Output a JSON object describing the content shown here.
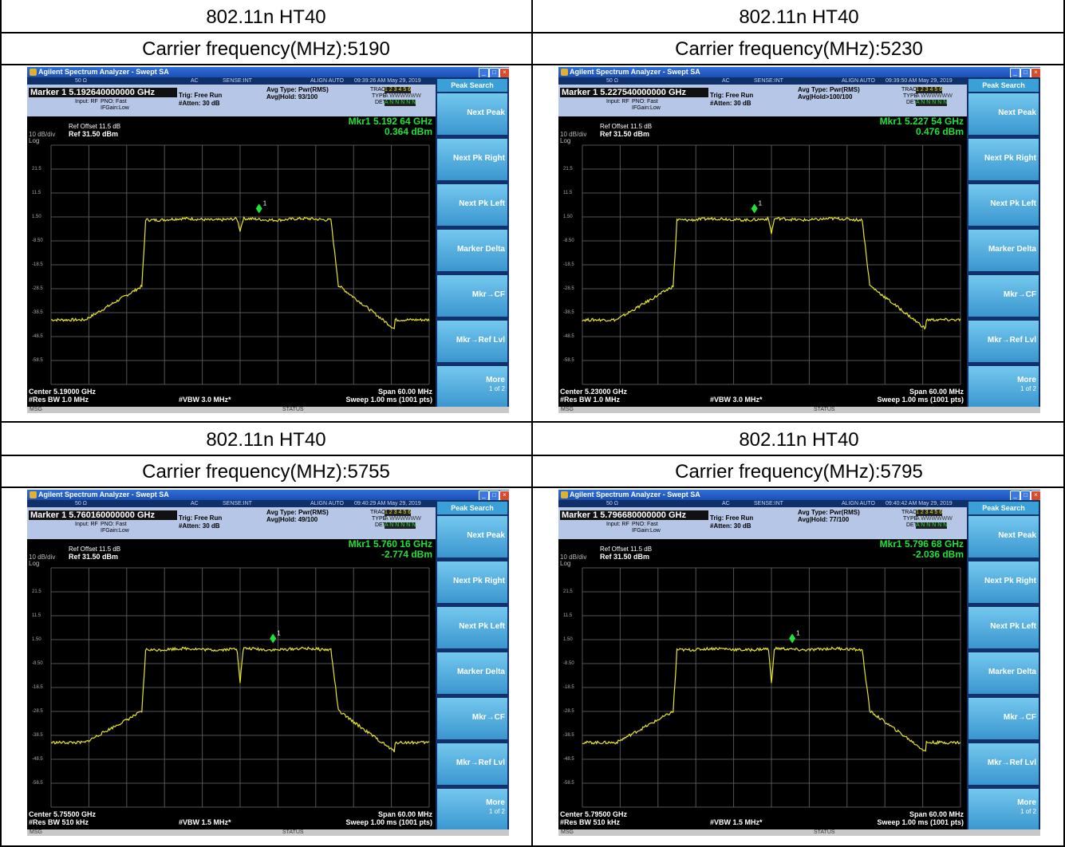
{
  "panels": [
    {
      "header_line1": "802.11n HT40",
      "header_line2": "Carrier frequency(MHz):5190",
      "window_title": "Agilent Spectrum Analyzer - Swept SA",
      "timestamp": "09:39:26 AM May 29, 2019",
      "marker_line": "Marker 1  5.192640000000 GHz",
      "input": "Input: RF",
      "pno": "PNO: Fast",
      "ifgain": "IFGain:Low",
      "trig": "Trig: Free Run",
      "atten": "#Atten: 30 dB",
      "avg_type": "Avg Type: Pwr(RMS)",
      "avg_hold": "Avg|Hold: 93/100",
      "ref_offset": "Ref Offset 11.5 dB",
      "scale": "10 dB/div",
      "ref_level": "Ref 31.50 dBm",
      "log": "Log",
      "mkr_freq": "Mkr1 5.192 64 GHz",
      "mkr_amp": "0.364 dBm",
      "center": "Center 5.19000 GHz",
      "res_bw": "#Res BW 1.0 MHz",
      "vbw": "#VBW 3.0 MHz*",
      "span": "Span 60.00 MHz",
      "sweep": "Sweep  1.00 ms (1001 pts)",
      "dip_depth": 5,
      "marker_pos": 0.55,
      "plateau_level": 1.5
    },
    {
      "header_line1": "802.11n HT40",
      "header_line2": "Carrier frequency(MHz):5230",
      "window_title": "Agilent Spectrum Analyzer - Swept SA",
      "timestamp": "09:39:50 AM May 29, 2019",
      "marker_line": "Marker 1  5.227540000000 GHz",
      "input": "Input: RF",
      "pno": "PNO: Fast",
      "ifgain": "IFGain:Low",
      "trig": "Trig: Free Run",
      "atten": "#Atten: 30 dB",
      "avg_type": "Avg Type: Pwr(RMS)",
      "avg_hold": "Avg|Hold>100/100",
      "ref_offset": "Ref Offset 11.5 dB",
      "scale": "10 dB/div",
      "ref_level": "Ref 31.50 dBm",
      "log": "Log",
      "mkr_freq": "Mkr1 5.227 54 GHz",
      "mkr_amp": "0.476 dBm",
      "center": "Center 5.23000 GHz",
      "res_bw": "#Res BW 1.0 MHz",
      "vbw": "#VBW 3.0 MHz*",
      "span": "Span 60.00 MHz",
      "sweep": "Sweep  1.00 ms (1001 pts)",
      "dip_depth": 6,
      "marker_pos": 0.455,
      "plateau_level": 1.5
    },
    {
      "header_line1": "802.11n HT40",
      "header_line2": "Carrier frequency(MHz):5755",
      "window_title": "Agilent Spectrum Analyzer - Swept SA",
      "timestamp": "09:40:29 AM May 29, 2019",
      "marker_line": "Marker 1  5.760160000000 GHz",
      "input": "Input: RF",
      "pno": "PNO: Fast",
      "ifgain": "IFGain:Low",
      "trig": "Trig: Free Run",
      "atten": "#Atten: 30 dB",
      "avg_type": "Avg Type: Pwr(RMS)",
      "avg_hold": "Avg|Hold: 49/100",
      "ref_offset": "Ref Offset 11.5 dB",
      "scale": "10 dB/div",
      "ref_level": "Ref 31.50 dBm",
      "log": "Log",
      "mkr_freq": "Mkr1 5.760 16 GHz",
      "mkr_amp": "-2.774 dBm",
      "center": "Center 5.75500 GHz",
      "res_bw": "#Res BW 510 kHz",
      "vbw": "#VBW 1.5 MHz*",
      "span": "Span 60.00 MHz",
      "sweep": "Sweep  1.00 ms (1001 pts)",
      "dip_depth": 14,
      "marker_pos": 0.587,
      "plateau_level": -1.5
    },
    {
      "header_line1": "802.11n HT40",
      "header_line2": "Carrier frequency(MHz):5795",
      "window_title": "Agilent Spectrum Analyzer - Swept SA",
      "timestamp": "09:40:42 AM May 29, 2019",
      "marker_line": "Marker 1  5.796680000000 GHz",
      "input": "Input: RF",
      "pno": "PNO: Fast",
      "ifgain": "IFGain:Low",
      "trig": "Trig: Free Run",
      "atten": "#Atten: 30 dB",
      "avg_type": "Avg Type: Pwr(RMS)",
      "avg_hold": "Avg|Hold: 77/100",
      "ref_offset": "Ref Offset 11.5 dB",
      "scale": "10 dB/div",
      "ref_level": "Ref 31.50 dBm",
      "log": "Log",
      "mkr_freq": "Mkr1 5.796 68 GHz",
      "mkr_amp": "-2.036 dBm",
      "center": "Center 5.79500 GHz",
      "res_bw": "#Res BW 510 kHz",
      "vbw": "#VBW 1.5 MHz*",
      "span": "Span 60.00 MHz",
      "sweep": "Sweep  1.00 ms (1001 pts)",
      "dip_depth": 14,
      "marker_pos": 0.555,
      "plateau_level": -1.5
    }
  ],
  "common": {
    "impedance": "50 Ω",
    "ac": "AC",
    "sense": "SENSE:INT",
    "align": "ALIGN AUTO",
    "trace_label": "TRACE",
    "trace_nums": "1 2 3 4 5 6",
    "type_label": "TYPE",
    "type_vals": "A WWWWWW",
    "det_label": "DET",
    "det_vals": "A N N N N N",
    "marker_num": "1",
    "softkey_header": "Peak Search",
    "softkeys": [
      "Next Peak",
      "Next Pk Right",
      "Next Pk Left",
      "Marker Delta",
      "Mkr→CF",
      "Mkr→Ref Lvl",
      "More"
    ],
    "more_sub": "1 of 2",
    "msg": "MSG",
    "status": "STATUS",
    "y_labels": [
      "21.5",
      "11.5",
      "1.50",
      "-8.50",
      "-18.5",
      "-28.5",
      "-38.5",
      "-48.5",
      "-58.5"
    ],
    "trace_color": "#e6e62a",
    "marker_color": "#22e03a"
  }
}
